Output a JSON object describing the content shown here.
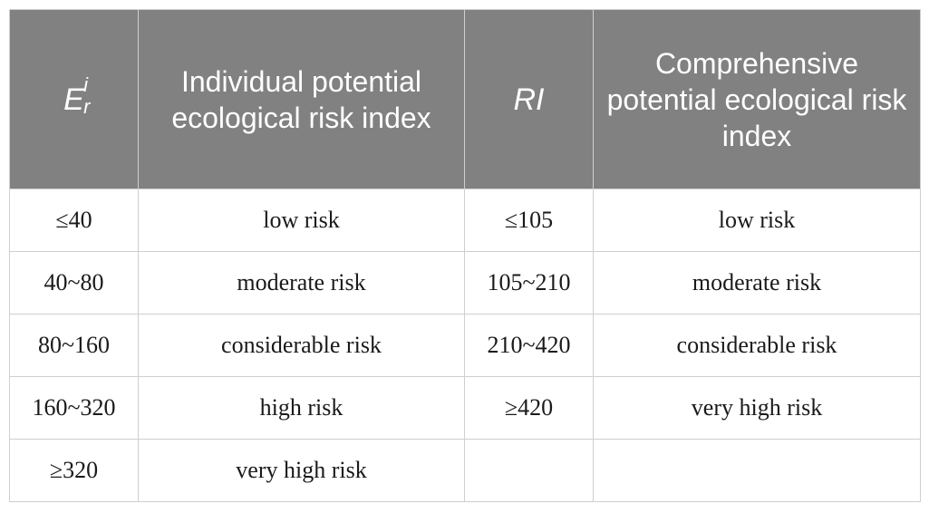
{
  "table": {
    "headers": {
      "col1_base": "E",
      "col1_sup": "i",
      "col1_sub": "r",
      "col2": "Individual potential ecological risk index",
      "col3": "RI",
      "col4": "Comprehensive potential ecological risk index"
    },
    "rows": [
      {
        "er": "≤40",
        "individual": "low risk",
        "ri": "≤105",
        "comprehensive": "low risk"
      },
      {
        "er": "40~80",
        "individual": "moderate risk",
        "ri": "105~210",
        "comprehensive": "moderate risk"
      },
      {
        "er": "80~160",
        "individual": "considerable risk",
        "ri": "210~420",
        "comprehensive": "considerable risk"
      },
      {
        "er": "160~320",
        "individual": "high risk",
        "ri": "≥420",
        "comprehensive": "very high risk"
      },
      {
        "er": "≥320",
        "individual": "very high risk",
        "ri": "",
        "comprehensive": ""
      }
    ],
    "colors": {
      "header_bg": "#808180",
      "header_text": "#ffffff",
      "border": "#cfcfcf"
    }
  }
}
